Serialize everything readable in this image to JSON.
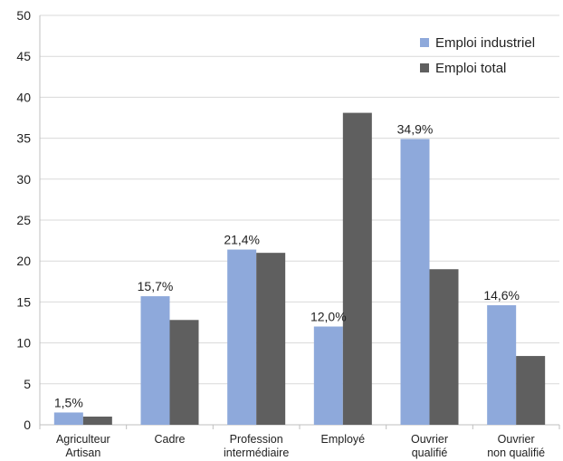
{
  "chart_data": {
    "type": "bar",
    "categories": [
      [
        "Agriculteur",
        "Artisan"
      ],
      [
        "Cadre"
      ],
      [
        "Profession",
        "intermédiaire"
      ],
      [
        "Employé"
      ],
      [
        "Ouvrier",
        "qualifié"
      ],
      [
        "Ouvrier",
        "non qualifié"
      ]
    ],
    "series": [
      {
        "name": "Emploi industriel",
        "color": "#8EA9DB",
        "values": [
          1.5,
          15.7,
          21.4,
          12.0,
          34.9,
          14.6
        ],
        "data_labels": [
          "1,5%",
          "15,7%",
          "21,4%",
          "12,0%",
          "34,9%",
          "14,6%"
        ]
      },
      {
        "name": "Emploi total",
        "color": "#5F5F5F",
        "values": [
          1.0,
          12.8,
          21.0,
          38.1,
          19.0,
          8.4
        ],
        "data_labels": []
      }
    ],
    "ylim": [
      0,
      50
    ],
    "yticks": [
      0,
      5,
      10,
      15,
      20,
      25,
      30,
      35,
      40,
      45,
      50
    ],
    "grid": true,
    "legend_position": "top-right",
    "title": "",
    "xlabel": "",
    "ylabel": ""
  }
}
